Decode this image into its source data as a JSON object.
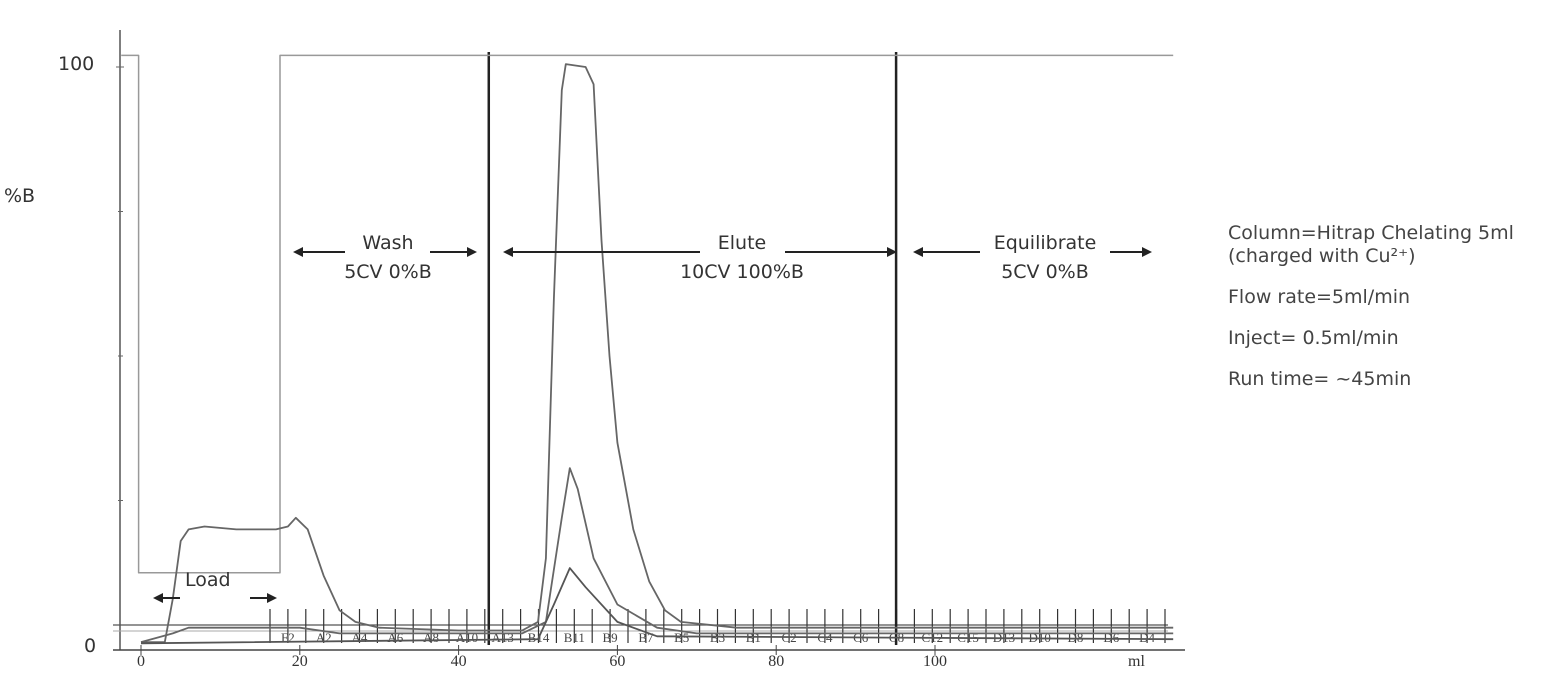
{
  "chart_data": {
    "type": "line",
    "ylabel": "%B",
    "xlabel": "ml",
    "xlim": [
      -3,
      131
    ],
    "ylim": [
      0,
      100
    ],
    "x_ticks": [
      "0",
      "20",
      "40",
      "60",
      "80",
      "100"
    ],
    "y_ticks": [
      "0",
      "100"
    ],
    "grid": false,
    "series": [
      {
        "role": "percent-B",
        "color": "#999999",
        "points": [
          [
            -2.5,
            102
          ],
          [
            -0.3,
            102
          ],
          [
            -0.3,
            12.5
          ],
          [
            17.5,
            12.5
          ],
          [
            17.5,
            102
          ],
          [
            130,
            102
          ]
        ]
      },
      {
        "role": "uv-trace-1",
        "color": "#666666",
        "points": [
          [
            0,
            0.5
          ],
          [
            3,
            0.5
          ],
          [
            4,
            8
          ],
          [
            5,
            18
          ],
          [
            6,
            20
          ],
          [
            8,
            20.5
          ],
          [
            12,
            20
          ],
          [
            17,
            20
          ],
          [
            18.5,
            20.5
          ],
          [
            19.5,
            22
          ],
          [
            21,
            20
          ],
          [
            23,
            12
          ],
          [
            25,
            6
          ],
          [
            27,
            4
          ],
          [
            30,
            3
          ],
          [
            40,
            2.5
          ],
          [
            48,
            2.5
          ],
          [
            50,
            4
          ],
          [
            51,
            15
          ],
          [
            52,
            60
          ],
          [
            53,
            96
          ],
          [
            53.5,
            100.5
          ],
          [
            56,
            100
          ],
          [
            57,
            97
          ],
          [
            58,
            70
          ],
          [
            59,
            50
          ],
          [
            60,
            35
          ],
          [
            62,
            20
          ],
          [
            64,
            11
          ],
          [
            66,
            6
          ],
          [
            68,
            4
          ],
          [
            75,
            3
          ],
          [
            130,
            3
          ]
        ]
      },
      {
        "role": "uv-trace-2",
        "color": "#666666",
        "points": [
          [
            0,
            0.5
          ],
          [
            4,
            2
          ],
          [
            6,
            3
          ],
          [
            17,
            3
          ],
          [
            20,
            3
          ],
          [
            25,
            2
          ],
          [
            48,
            2
          ],
          [
            51,
            4
          ],
          [
            53,
            22
          ],
          [
            54,
            30.6
          ],
          [
            55,
            27
          ],
          [
            57,
            15
          ],
          [
            60,
            7
          ],
          [
            65,
            3
          ],
          [
            70,
            2
          ],
          [
            130,
            2
          ]
        ]
      },
      {
        "role": "uv-trace-3",
        "color": "#555555",
        "points": [
          [
            0,
            0.3
          ],
          [
            50,
            1
          ],
          [
            52,
            7
          ],
          [
            54,
            13.3
          ],
          [
            56,
            10
          ],
          [
            60,
            4
          ],
          [
            65,
            1.5
          ],
          [
            130,
            1
          ]
        ]
      }
    ],
    "markers_ml": [
      43.8,
      95.1
    ],
    "fractions": [
      "F2",
      "A2",
      "A4",
      "A6",
      "A8",
      "A10",
      "A13",
      "B14",
      "B11",
      "B9",
      "B7",
      "B5",
      "B3",
      "B1",
      "C2",
      "C4",
      "C6",
      "C8",
      "C12",
      "C15",
      "D13",
      "D10",
      "D8",
      "D6",
      "D4"
    ],
    "annotations": {
      "load": "Load",
      "wash": {
        "line1": "Wash",
        "line2": "5CV 0%B"
      },
      "elute": {
        "line1": "Elute",
        "line2": "10CV 100%B"
      },
      "equilibrate": {
        "line1": "Equilibrate",
        "line2": "5CV 0%B"
      }
    }
  },
  "info": {
    "column": "Column=Hitrap Chelating 5ml",
    "charged": "(charged with Cu²⁺)",
    "flow_rate": "Flow rate=5ml/min",
    "inject": "Inject= 0.5ml/min",
    "run_time": "Run time= ~45min"
  }
}
